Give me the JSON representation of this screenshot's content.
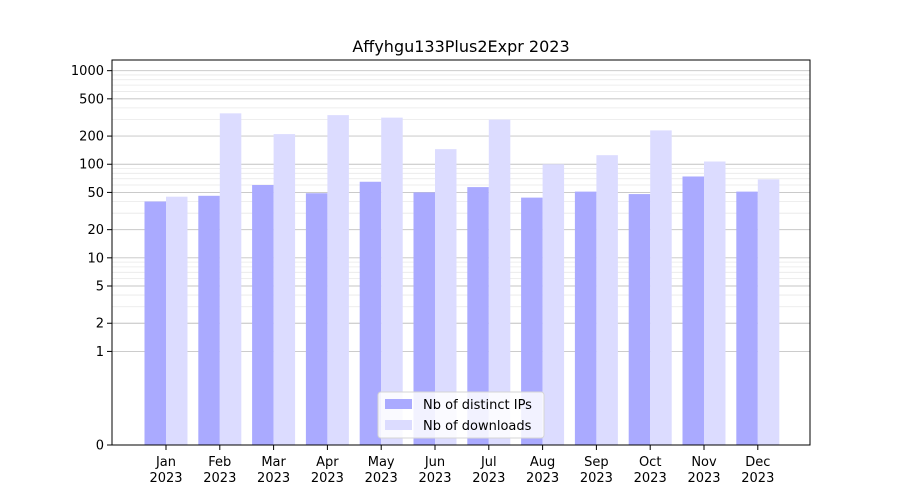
{
  "chart_data": {
    "type": "bar",
    "title": "Affyhgu133Plus2Expr 2023",
    "xlabel": "",
    "ylabel": "",
    "yscale": "symlog",
    "ylim": [
      0,
      1300
    ],
    "yticks": [
      0,
      1,
      2,
      5,
      10,
      20,
      50,
      100,
      200,
      500,
      1000
    ],
    "grid": true,
    "legend_position": "lower center",
    "categories": [
      [
        "Jan",
        "2023"
      ],
      [
        "Feb",
        "2023"
      ],
      [
        "Mar",
        "2023"
      ],
      [
        "Apr",
        "2023"
      ],
      [
        "May",
        "2023"
      ],
      [
        "Jun",
        "2023"
      ],
      [
        "Jul",
        "2023"
      ],
      [
        "Aug",
        "2023"
      ],
      [
        "Sep",
        "2023"
      ],
      [
        "Oct",
        "2023"
      ],
      [
        "Nov",
        "2023"
      ],
      [
        "Dec",
        "2023"
      ]
    ],
    "series": [
      {
        "name": "Nb of distinct IPs",
        "color": "#aaaaff",
        "values": [
          40,
          46,
          60,
          49,
          65,
          50,
          57,
          44,
          51,
          48,
          74,
          51
        ]
      },
      {
        "name": "Nb of downloads",
        "color": "#dcdcff",
        "values": [
          45,
          350,
          210,
          335,
          315,
          145,
          300,
          100,
          125,
          230,
          107,
          69
        ]
      }
    ]
  }
}
